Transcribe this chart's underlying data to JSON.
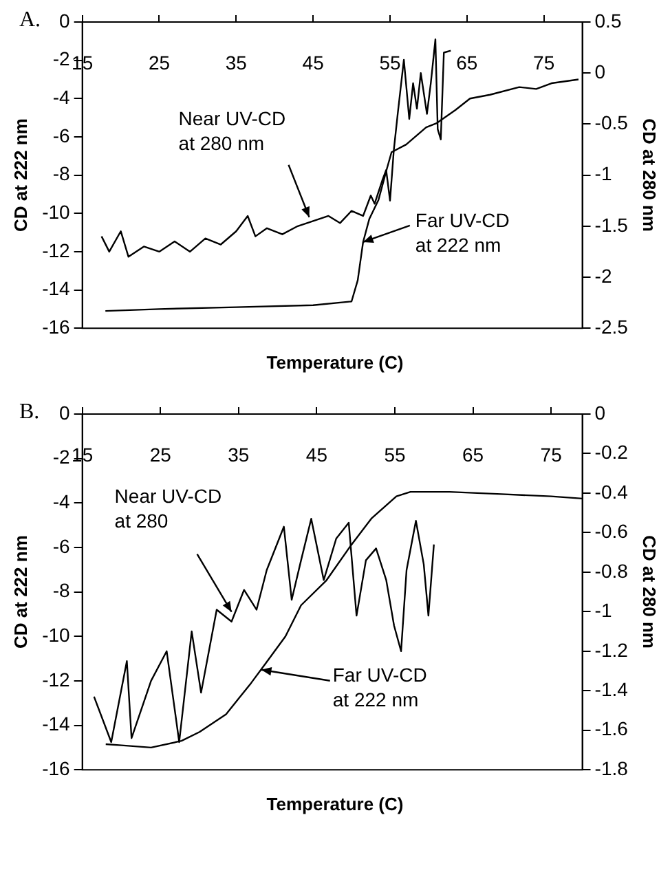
{
  "chart_data": [
    {
      "type": "line",
      "title": "A.",
      "xlabel": "Temperature (C)",
      "ylabel": "CD at 222 nm",
      "y2label": "CD at 280 nm",
      "xlim": [
        15,
        80
      ],
      "xticks": [
        15,
        25,
        35,
        45,
        55,
        65,
        75
      ],
      "ylim": [
        -16,
        0
      ],
      "yticks": [
        -16,
        -14,
        -12,
        -10,
        -8,
        -6,
        -4,
        -2,
        0
      ],
      "y2lim": [
        -2.5,
        0.5
      ],
      "y2ticks": [
        -2.5,
        -2,
        -1.5,
        -1,
        -0.5,
        0,
        0.5
      ],
      "grid": false,
      "legend": false,
      "marker": "none",
      "line_style": "solid",
      "series": [
        {
          "color": "#000000",
          "x": [
            18,
            25,
            35,
            45,
            50,
            50.8,
            51.5,
            52.3,
            53.5,
            54.5,
            55.2,
            57.1,
            59.7,
            61,
            63.5,
            65.4,
            68,
            71.8,
            74,
            76,
            79.5
          ],
          "values": [
            -15.1,
            -15,
            -14.9,
            -14.8,
            -14.6,
            -13.5,
            -11.5,
            -10.3,
            -9.3,
            -7.8,
            -6.8,
            -6.4,
            -5.5,
            -5.3,
            -4.6,
            -4,
            -3.8,
            -3.4,
            -3.5,
            -3.2,
            -3
          ]
        },
        {
          "color": "#000000",
          "axis": "y2",
          "x": [
            17.5,
            18.5,
            20,
            21,
            23,
            25,
            27,
            29,
            31,
            33,
            35,
            36.5,
            37.5,
            39,
            41,
            43,
            45,
            47,
            48.5,
            50,
            51.5,
            52.5,
            53,
            54,
            54.5,
            55,
            55.5,
            56,
            56.8,
            57.5,
            58,
            58.5,
            59,
            59.8,
            60.3,
            60.9,
            61.2,
            61.6,
            62,
            62.9
          ],
          "values": [
            -1.6,
            -1.75,
            -1.55,
            -1.8,
            -1.7,
            -1.75,
            -1.65,
            -1.75,
            -1.62,
            -1.68,
            -1.55,
            -1.4,
            -1.6,
            -1.52,
            -1.58,
            -1.5,
            -1.45,
            -1.4,
            -1.47,
            -1.35,
            -1.4,
            -1.2,
            -1.28,
            -1.05,
            -0.95,
            -1.25,
            -0.75,
            -0.4,
            0.13,
            -0.45,
            -0.1,
            -0.35,
            0,
            -0.4,
            -0.1,
            0.33,
            -0.55,
            -0.65,
            0.2,
            0.22
          ]
        }
      ],
      "annotations": [
        {
          "text": "Near UV-CD at 280 nm",
          "x": 44.5,
          "y": -10.2
        },
        {
          "text": "Far UV-CD at 222 nm",
          "x": 51.5,
          "y": -11.5
        }
      ]
    },
    {
      "type": "line",
      "title": "B.",
      "xlabel": "Temperature (C)",
      "ylabel": "CD at 222 nm",
      "y2label": "CD at 280 nm",
      "xlim": [
        15,
        79
      ],
      "xticks": [
        15,
        25,
        35,
        45,
        55,
        65,
        75
      ],
      "ylim": [
        -16,
        0
      ],
      "yticks": [
        -16,
        -14,
        -12,
        -10,
        -8,
        -6,
        -4,
        -2,
        0
      ],
      "y2lim": [
        -1.8,
        0
      ],
      "y2ticks": [
        -1.8,
        -1.6,
        -1.4,
        -1.2,
        -1,
        -0.8,
        -0.6,
        -0.4,
        -0.2,
        0
      ],
      "grid": false,
      "legend": false,
      "marker": "none",
      "line_style": "solid",
      "series": [
        {
          "color": "#000000",
          "x": [
            18,
            20,
            23.8,
            27.7,
            30,
            33.4,
            36.6,
            38.5,
            41,
            43,
            46.2,
            49.4,
            52,
            55.2,
            57,
            62,
            68.6,
            75,
            79
          ],
          "values": [
            -14.85,
            -14.9,
            -15,
            -14.7,
            -14.3,
            -13.5,
            -12.1,
            -11.2,
            -10,
            -8.6,
            -7.5,
            -5.9,
            -4.7,
            -3.7,
            -3.5,
            -3.5,
            -3.6,
            -3.7,
            -3.8
          ]
        },
        {
          "color": "#000000",
          "axis": "y2",
          "x": [
            16.5,
            18.7,
            20.7,
            21.3,
            23.8,
            25.8,
            27.4,
            29,
            30.2,
            32.2,
            34.1,
            35.7,
            37.3,
            38.6,
            40.8,
            41.8,
            43,
            44.3,
            45.9,
            47.5,
            49.1,
            50.1,
            51.3,
            52.6,
            53.9,
            54.9,
            55.8,
            56.5,
            57.7,
            58.7,
            59.3,
            60
          ],
          "values": [
            -1.43,
            -1.66,
            -1.25,
            -1.64,
            -1.35,
            -1.2,
            -1.66,
            -1.1,
            -1.41,
            -0.99,
            -1.05,
            -0.89,
            -0.99,
            -0.79,
            -0.57,
            -0.94,
            -0.74,
            -0.53,
            -0.84,
            -0.63,
            -0.55,
            -1.02,
            -0.74,
            -0.68,
            -0.84,
            -1.07,
            -1.2,
            -0.79,
            -0.54,
            -0.76,
            -1.02,
            -0.66
          ]
        }
      ],
      "annotations": [
        {
          "text": "Near UV-CD at 280",
          "x": 34.1,
          "y": -8.9
        },
        {
          "text": "Far UV-CD at 222 nm",
          "x": 37.9,
          "y": -11.5
        }
      ]
    }
  ]
}
